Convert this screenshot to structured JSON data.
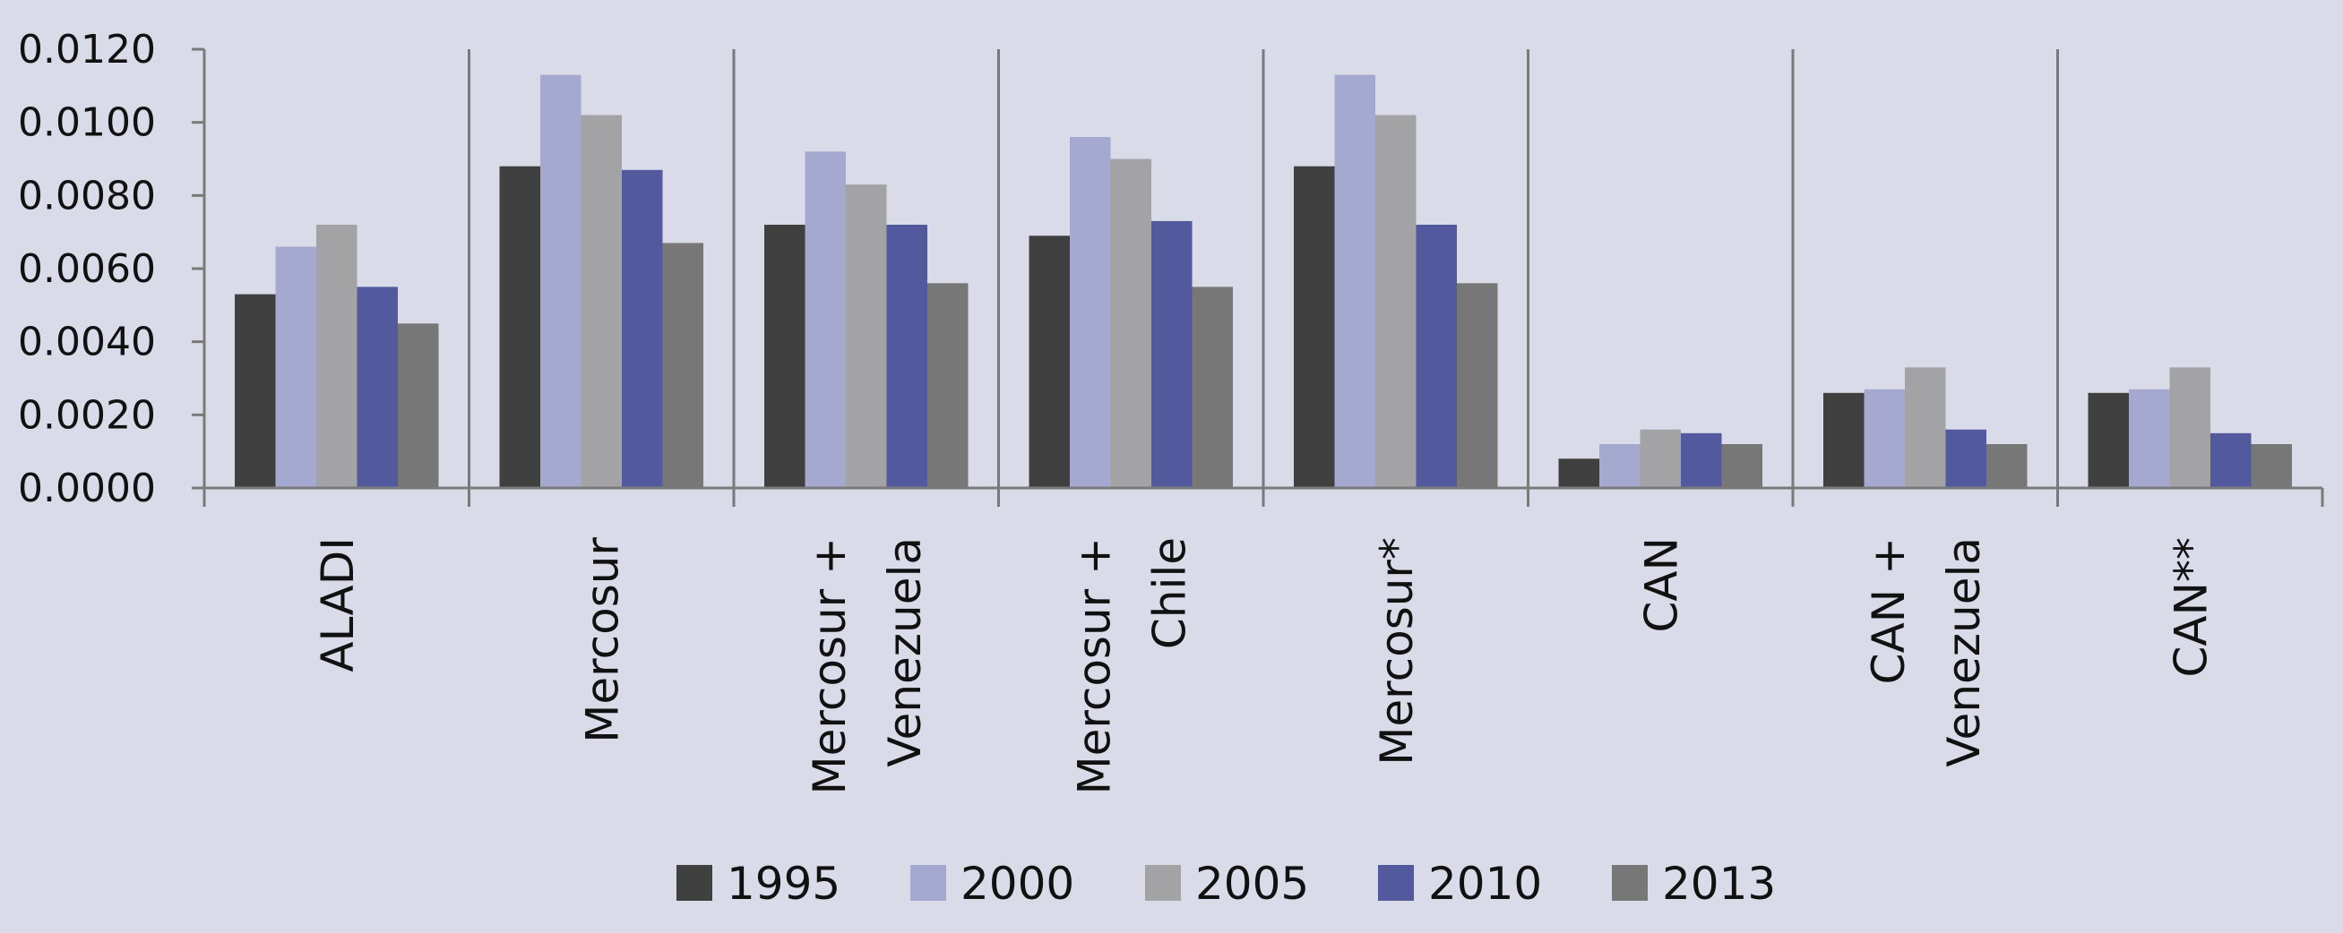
{
  "chart_data": {
    "type": "bar",
    "categories": [
      [
        "ALADI"
      ],
      [
        "Mercosur"
      ],
      [
        "Mercosur +",
        "Venezuela"
      ],
      [
        "Mercosur +",
        "Chile"
      ],
      [
        "Mercosur*"
      ],
      [
        "CAN"
      ],
      [
        "CAN +",
        "Venezuela"
      ],
      [
        "CAN**"
      ]
    ],
    "series": [
      {
        "name": "1995",
        "color": "#404040",
        "values": [
          0.0053,
          0.0088,
          0.0072,
          0.0069,
          0.0088,
          0.0008,
          0.0026,
          0.0026
        ]
      },
      {
        "name": "2000",
        "color": "#a5a9cf",
        "values": [
          0.0066,
          0.0113,
          0.0092,
          0.0096,
          0.0113,
          0.0012,
          0.0027,
          0.0027
        ]
      },
      {
        "name": "2005",
        "color": "#a3a3a5",
        "values": [
          0.0072,
          0.0102,
          0.0083,
          0.009,
          0.0102,
          0.0016,
          0.0033,
          0.0033
        ]
      },
      {
        "name": "2010",
        "color": "#525a9d",
        "values": [
          0.0055,
          0.0087,
          0.0072,
          0.0073,
          0.0072,
          0.0015,
          0.0016,
          0.0015
        ]
      },
      {
        "name": "2013",
        "color": "#777777",
        "values": [
          0.0045,
          0.0067,
          0.0056,
          0.0055,
          0.0056,
          0.0012,
          0.0012,
          0.0012
        ]
      }
    ],
    "y_ticks": [
      "0.0000",
      "0.0020",
      "0.0040",
      "0.0060",
      "0.0080",
      "0.0100",
      "0.0120"
    ],
    "ylim": [
      0,
      0.012
    ],
    "grid": false,
    "legend_position": "bottom",
    "title": "",
    "xlabel": "",
    "ylabel": ""
  }
}
